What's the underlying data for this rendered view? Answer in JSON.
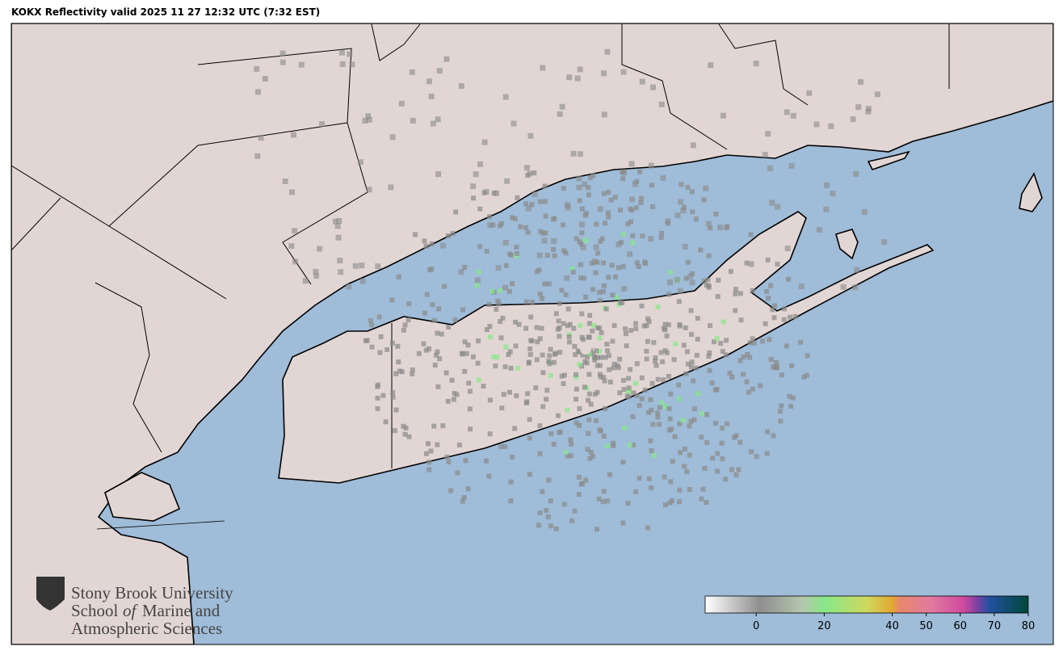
{
  "title": "KOKX Reflectivity valid 2025 11 27 12:32 UTC (7:32 EST)",
  "logo": {
    "line1": "Stony Brook University",
    "line2_start": "School",
    "line2_italic": "of",
    "line2_end": "Marine and",
    "line3": "Atmospheric Sciences"
  },
  "colorbar": {
    "range": [
      -15,
      80
    ],
    "ticks": [
      0,
      20,
      40,
      50,
      60,
      70,
      80
    ]
  }
}
